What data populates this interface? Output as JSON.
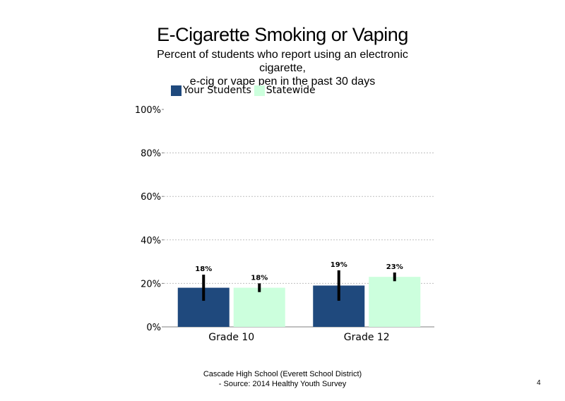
{
  "slide": {
    "title": "E-Cigarette Smoking or Vaping",
    "subtitle_lines": [
      "Percent of students  who report using an electronic",
      "cigarette,",
      "e-cig or vape pen in the past 30 days"
    ],
    "footer_lines": [
      "Cascade High  School (Everett School District)",
      "- Source: 2014 Healthy  Youth Survey"
    ],
    "page_number": "4"
  },
  "colors": {
    "your_students": "#1f497d",
    "statewide": "#ccffdd",
    "error_bar": "#000000",
    "gridline": "#bfbfbf"
  },
  "chart_data": {
    "type": "bar",
    "categories": [
      "Grade 10",
      "Grade 12"
    ],
    "series": [
      {
        "name": "Your Students",
        "values": [
          18,
          19
        ],
        "labels": [
          "18%",
          "19%"
        ],
        "ci_low": [
          12,
          12
        ],
        "ci_high": [
          24,
          26
        ]
      },
      {
        "name": "Statewide",
        "values": [
          18,
          23
        ],
        "labels": [
          "18%",
          "23%"
        ],
        "ci_low": [
          16,
          21
        ],
        "ci_high": [
          20,
          25
        ]
      }
    ],
    "ylim": [
      0,
      100
    ],
    "yticks": [
      0,
      20,
      40,
      60,
      80,
      100
    ],
    "ytick_labels": [
      "0%",
      "20%",
      "40%",
      "60%",
      "80%",
      "100%"
    ],
    "grid": "horizontal dotted",
    "legend_position": "top-left"
  }
}
